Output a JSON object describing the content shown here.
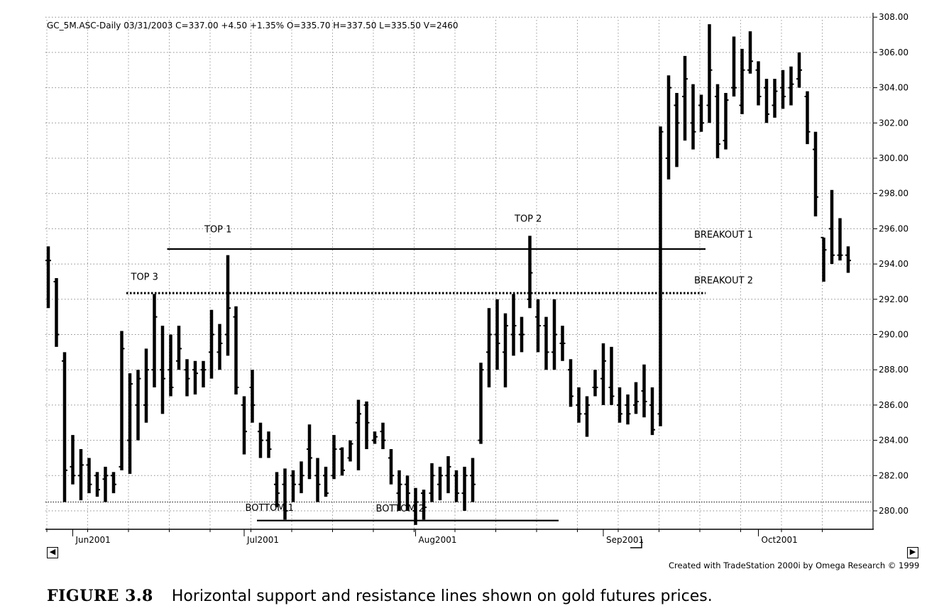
{
  "chart_data": {
    "type": "bar",
    "subtype": "ohlc",
    "header": "GC_5M.ASC-Daily  03/31/2003  C=337.00  +4.50  +1.35%  O=335.70  H=337.50  L=335.50  V=2460",
    "x_tick_labels": [
      "Jun2001",
      "Jul2001",
      "Aug2001",
      "Sep2001",
      "Oct2001"
    ],
    "y_tick_labels": [
      "308.00",
      "306.00",
      "304.00",
      "302.00",
      "300.00",
      "298.00",
      "296.00",
      "294.00",
      "292.00",
      "290.00",
      "288.00",
      "286.00",
      "284.00",
      "282.00",
      "280.00"
    ],
    "ylim": [
      279.2,
      308.6
    ],
    "grid": true,
    "bars": [
      {
        "d": "2001-05-29",
        "o": 294.2,
        "h": 295.0,
        "l": 291.5,
        "c": 294.2
      },
      {
        "d": "2001-05-30",
        "o": 293.0,
        "h": 293.2,
        "l": 289.3,
        "c": 290.0
      },
      {
        "d": "2001-05-31",
        "o": 288.5,
        "h": 289.0,
        "l": 280.5,
        "c": 282.3
      },
      {
        "d": "2001-06-01",
        "o": 282.5,
        "h": 284.3,
        "l": 281.5,
        "c": 282.0
      },
      {
        "d": "2001-06-04",
        "o": 282.0,
        "h": 283.5,
        "l": 280.6,
        "c": 282.6
      },
      {
        "d": "2001-06-05",
        "o": 282.6,
        "h": 283.0,
        "l": 281.0,
        "c": 281.5
      },
      {
        "d": "2001-06-06",
        "o": 282.0,
        "h": 282.2,
        "l": 280.8,
        "c": 281.2
      },
      {
        "d": "2001-06-07",
        "o": 281.8,
        "h": 282.5,
        "l": 280.5,
        "c": 282.0
      },
      {
        "d": "2001-06-08",
        "o": 282.0,
        "h": 282.2,
        "l": 281.0,
        "c": 281.5
      },
      {
        "d": "2001-06-11",
        "o": 282.5,
        "h": 290.2,
        "l": 282.3,
        "c": 289.2
      },
      {
        "d": "2001-06-12",
        "o": 284.0,
        "h": 287.8,
        "l": 282.1,
        "c": 287.2
      },
      {
        "d": "2001-06-13",
        "o": 286.0,
        "h": 288.0,
        "l": 284.0,
        "c": 287.5
      },
      {
        "d": "2001-06-14",
        "o": 286.0,
        "h": 289.2,
        "l": 285.0,
        "c": 288.0
      },
      {
        "d": "2001-06-15",
        "o": 288.0,
        "h": 292.3,
        "l": 287.0,
        "c": 291.0
      },
      {
        "d": "2001-06-18",
        "o": 288.0,
        "h": 290.5,
        "l": 285.5,
        "c": 287.5
      },
      {
        "d": "2001-06-19",
        "o": 288.0,
        "h": 290.0,
        "l": 286.5,
        "c": 287.0
      },
      {
        "d": "2001-06-20",
        "o": 288.5,
        "h": 290.5,
        "l": 288.0,
        "c": 289.2
      },
      {
        "d": "2001-06-21",
        "o": 288.0,
        "h": 288.6,
        "l": 286.5,
        "c": 287.5
      },
      {
        "d": "2001-06-22",
        "o": 288.0,
        "h": 288.5,
        "l": 286.6,
        "c": 287.8
      },
      {
        "d": "2001-06-25",
        "o": 288.0,
        "h": 288.5,
        "l": 287.0,
        "c": 288.0
      },
      {
        "d": "2001-06-26",
        "o": 289.0,
        "h": 291.4,
        "l": 287.5,
        "c": 290.0
      },
      {
        "d": "2001-06-27",
        "o": 289.0,
        "h": 290.6,
        "l": 288.0,
        "c": 289.5
      },
      {
        "d": "2001-06-28",
        "o": 290.0,
        "h": 294.5,
        "l": 288.8,
        "c": 291.5
      },
      {
        "d": "2001-06-29",
        "o": 291.0,
        "h": 291.6,
        "l": 286.6,
        "c": 287.0
      },
      {
        "d": "2001-07-02",
        "o": 286.0,
        "h": 286.5,
        "l": 283.2,
        "c": 284.5
      },
      {
        "d": "2001-07-03",
        "o": 287.0,
        "h": 288.0,
        "l": 285.0,
        "c": 286.0
      },
      {
        "d": "2001-07-05",
        "o": 284.5,
        "h": 285.0,
        "l": 283.0,
        "c": 284.0
      },
      {
        "d": "2001-07-06",
        "o": 284.0,
        "h": 284.5,
        "l": 283.0,
        "c": 283.5
      },
      {
        "d": "2001-07-09",
        "o": 281.5,
        "h": 282.2,
        "l": 280.2,
        "c": 281.0
      },
      {
        "d": "2001-07-10",
        "o": 281.5,
        "h": 282.4,
        "l": 279.5,
        "c": 280.0
      },
      {
        "d": "2001-07-11",
        "o": 282.0,
        "h": 282.3,
        "l": 280.5,
        "c": 281.5
      },
      {
        "d": "2001-07-12",
        "o": 281.5,
        "h": 282.8,
        "l": 281.0,
        "c": 282.0
      },
      {
        "d": "2001-07-13",
        "o": 283.5,
        "h": 284.9,
        "l": 281.8,
        "c": 283.0
      },
      {
        "d": "2001-07-16",
        "o": 282.0,
        "h": 283.0,
        "l": 280.5,
        "c": 281.5
      },
      {
        "d": "2001-07-17",
        "o": 282.0,
        "h": 282.5,
        "l": 280.8,
        "c": 281.0
      },
      {
        "d": "2001-07-18",
        "o": 282.0,
        "h": 284.3,
        "l": 281.8,
        "c": 283.5
      },
      {
        "d": "2001-07-19",
        "o": 283.5,
        "h": 283.6,
        "l": 282.0,
        "c": 282.3
      },
      {
        "d": "2001-07-20",
        "o": 283.0,
        "h": 284.0,
        "l": 282.8,
        "c": 283.8
      },
      {
        "d": "2001-07-23",
        "o": 285.0,
        "h": 286.3,
        "l": 282.3,
        "c": 285.5
      },
      {
        "d": "2001-07-24",
        "o": 286.0,
        "h": 286.2,
        "l": 283.5,
        "c": 285.0
      },
      {
        "d": "2001-07-25",
        "o": 284.0,
        "h": 284.5,
        "l": 283.8,
        "c": 284.2
      },
      {
        "d": "2001-07-26",
        "o": 284.5,
        "h": 285.0,
        "l": 283.5,
        "c": 284.0
      },
      {
        "d": "2001-07-27",
        "o": 283.0,
        "h": 283.5,
        "l": 281.5,
        "c": 282.0
      },
      {
        "d": "2001-07-30",
        "o": 281.0,
        "h": 282.3,
        "l": 280.0,
        "c": 281.5
      },
      {
        "d": "2001-07-31",
        "o": 281.5,
        "h": 282.0,
        "l": 280.0,
        "c": 281.0
      },
      {
        "d": "2001-08-01",
        "o": 280.0,
        "h": 281.3,
        "l": 279.2,
        "c": 280.5
      },
      {
        "d": "2001-08-02",
        "o": 281.0,
        "h": 281.2,
        "l": 279.5,
        "c": 280.2
      },
      {
        "d": "2001-08-03",
        "o": 281.0,
        "h": 282.7,
        "l": 280.5,
        "c": 282.0
      },
      {
        "d": "2001-08-06",
        "o": 281.5,
        "h": 282.5,
        "l": 280.6,
        "c": 282.0
      },
      {
        "d": "2001-08-07",
        "o": 282.0,
        "h": 283.1,
        "l": 281.0,
        "c": 282.5
      },
      {
        "d": "2001-08-08",
        "o": 282.0,
        "h": 282.3,
        "l": 280.5,
        "c": 281.0
      },
      {
        "d": "2001-08-09",
        "o": 281.0,
        "h": 282.5,
        "l": 280.0,
        "c": 282.0
      },
      {
        "d": "2001-08-10",
        "o": 282.0,
        "h": 283.0,
        "l": 280.5,
        "c": 281.5
      },
      {
        "d": "2001-08-13",
        "o": 284.0,
        "h": 288.4,
        "l": 283.8,
        "c": 288.0
      },
      {
        "d": "2001-08-14",
        "o": 289.0,
        "h": 291.5,
        "l": 287.0,
        "c": 290.0
      },
      {
        "d": "2001-08-15",
        "o": 290.0,
        "h": 292.0,
        "l": 288.0,
        "c": 289.5
      },
      {
        "d": "2001-08-16",
        "o": 289.0,
        "h": 291.2,
        "l": 287.0,
        "c": 290.5
      },
      {
        "d": "2001-08-17",
        "o": 290.0,
        "h": 292.3,
        "l": 288.8,
        "c": 290.5
      },
      {
        "d": "2001-08-20",
        "o": 290.0,
        "h": 291.0,
        "l": 289.0,
        "c": 290.0
      },
      {
        "d": "2001-08-21",
        "o": 292.0,
        "h": 295.6,
        "l": 291.5,
        "c": 293.5
      },
      {
        "d": "2001-08-22",
        "o": 291.0,
        "h": 292.0,
        "l": 289.0,
        "c": 290.5
      },
      {
        "d": "2001-08-23",
        "o": 290.5,
        "h": 291.0,
        "l": 288.0,
        "c": 289.0
      },
      {
        "d": "2001-08-24",
        "o": 289.0,
        "h": 292.0,
        "l": 288.0,
        "c": 290.0
      },
      {
        "d": "2001-08-27",
        "o": 289.5,
        "h": 290.5,
        "l": 288.5,
        "c": 289.5
      },
      {
        "d": "2001-08-28",
        "o": 288.0,
        "h": 288.6,
        "l": 285.9,
        "c": 286.5
      },
      {
        "d": "2001-08-29",
        "o": 286.0,
        "h": 287.0,
        "l": 285.0,
        "c": 285.5
      },
      {
        "d": "2001-08-30",
        "o": 285.5,
        "h": 286.5,
        "l": 284.2,
        "c": 286.0
      },
      {
        "d": "2001-08-31",
        "o": 287.0,
        "h": 288.0,
        "l": 286.5,
        "c": 287.0
      },
      {
        "d": "2001-09-04",
        "o": 287.5,
        "h": 289.5,
        "l": 286.0,
        "c": 288.5
      },
      {
        "d": "2001-09-05",
        "o": 287.0,
        "h": 289.3,
        "l": 286.0,
        "c": 286.5
      },
      {
        "d": "2001-09-06",
        "o": 286.0,
        "h": 287.0,
        "l": 285.0,
        "c": 285.5
      },
      {
        "d": "2001-09-07",
        "o": 286.0,
        "h": 286.6,
        "l": 284.9,
        "c": 285.5
      },
      {
        "d": "2001-09-10",
        "o": 286.0,
        "h": 287.3,
        "l": 285.5,
        "c": 286.2
      },
      {
        "d": "2001-09-11",
        "o": 286.8,
        "h": 288.3,
        "l": 285.3,
        "c": 286.2
      },
      {
        "d": "2001-09-12",
        "o": 286.0,
        "h": 287.0,
        "l": 284.3,
        "c": 284.6
      },
      {
        "d": "2001-09-13",
        "o": 285.5,
        "h": 301.8,
        "l": 284.8,
        "c": 301.5
      },
      {
        "d": "2001-09-14",
        "o": 300.0,
        "h": 304.7,
        "l": 298.8,
        "c": 304.0
      },
      {
        "d": "2001-09-17",
        "o": 303.0,
        "h": 303.7,
        "l": 299.5,
        "c": 302.0
      },
      {
        "d": "2001-09-18",
        "o": 303.5,
        "h": 305.8,
        "l": 301.0,
        "c": 304.5
      },
      {
        "d": "2001-09-19",
        "o": 302.0,
        "h": 304.2,
        "l": 300.5,
        "c": 301.5
      },
      {
        "d": "2001-09-20",
        "o": 303.0,
        "h": 303.6,
        "l": 301.5,
        "c": 302.0
      },
      {
        "d": "2001-09-21",
        "o": 303.0,
        "h": 307.6,
        "l": 302.0,
        "c": 305.0
      },
      {
        "d": "2001-09-24",
        "o": 303.5,
        "h": 304.2,
        "l": 300.0,
        "c": 300.8
      },
      {
        "d": "2001-09-25",
        "o": 301.0,
        "h": 303.7,
        "l": 300.5,
        "c": 303.3
      },
      {
        "d": "2001-09-26",
        "o": 304.0,
        "h": 306.9,
        "l": 303.5,
        "c": 304.0
      },
      {
        "d": "2001-09-27",
        "o": 303.0,
        "h": 306.2,
        "l": 302.5,
        "c": 305.0
      },
      {
        "d": "2001-09-28",
        "o": 305.0,
        "h": 307.2,
        "l": 304.8,
        "c": 305.5
      },
      {
        "d": "2001-10-01",
        "o": 305.0,
        "h": 305.5,
        "l": 303.0,
        "c": 303.5
      },
      {
        "d": "2001-10-02",
        "o": 304.0,
        "h": 304.5,
        "l": 302.0,
        "c": 302.5
      },
      {
        "d": "2001-10-03",
        "o": 303.0,
        "h": 304.5,
        "l": 302.3,
        "c": 303.8
      },
      {
        "d": "2001-10-04",
        "o": 304.0,
        "h": 305.0,
        "l": 302.8,
        "c": 303.5
      },
      {
        "d": "2001-10-05",
        "o": 304.0,
        "h": 305.2,
        "l": 303.0,
        "c": 304.2
      },
      {
        "d": "2001-10-08",
        "o": 304.5,
        "h": 306.0,
        "l": 304.0,
        "c": 305.0
      },
      {
        "d": "2001-10-09",
        "o": 303.5,
        "h": 303.8,
        "l": 300.8,
        "c": 301.5
      },
      {
        "d": "2001-10-10",
        "o": 300.5,
        "h": 301.5,
        "l": 296.7,
        "c": 297.8
      },
      {
        "d": "2001-10-11",
        "o": 295.5,
        "h": 295.5,
        "l": 293.0,
        "c": 294.8
      },
      {
        "d": "2001-10-12",
        "o": 296.0,
        "h": 298.2,
        "l": 294.0,
        "c": 294.5
      },
      {
        "d": "2001-10-15",
        "o": 294.5,
        "h": 296.6,
        "l": 294.2,
        "c": 294.5
      },
      {
        "d": "2001-10-16",
        "o": 294.5,
        "h": 295.0,
        "l": 293.5,
        "c": 294.2
      }
    ],
    "reference_lines": [
      {
        "y": 294.85,
        "style": "solid",
        "from": "2001-06-19",
        "to": "2001-09-20",
        "label": "BREAKOUT 1"
      },
      {
        "y": 292.35,
        "style": "dotted",
        "from": "2001-06-12",
        "to": "2001-09-20",
        "label": "BREAKOUT 2"
      },
      {
        "y": 279.45,
        "style": "solid",
        "from": "2001-07-05",
        "to": "2001-08-24"
      },
      {
        "y": 280.5,
        "style": "dotted-thin",
        "from": "2001-05-29",
        "to": "2001-10-16"
      }
    ],
    "annotations": [
      {
        "text": "TOP 1",
        "x": "2001-06-26",
        "y": 295.8
      },
      {
        "text": "TOP 2",
        "x": "2001-08-20",
        "y": 296.4
      },
      {
        "text": "TOP 3",
        "x": "2001-06-13",
        "y": 293.1
      },
      {
        "text": "BOTTOM 1",
        "x": "2001-07-03",
        "y": 280.0
      },
      {
        "text": "BOTTOM 2",
        "x": "2001-07-26",
        "y": 279.95
      },
      {
        "text": "BREAKOUT 1",
        "x": "2001-09-20",
        "y": 295.5
      },
      {
        "text": "BREAKOUT 2",
        "x": "2001-09-20",
        "y": 292.9
      }
    ]
  },
  "footer_credit": "Created with TradeStation 2000i by Omega Research © 1999",
  "caption": {
    "figure_number": "FIGURE 3.8",
    "text": "Horizontal support and resistance lines shown on gold futures prices."
  }
}
